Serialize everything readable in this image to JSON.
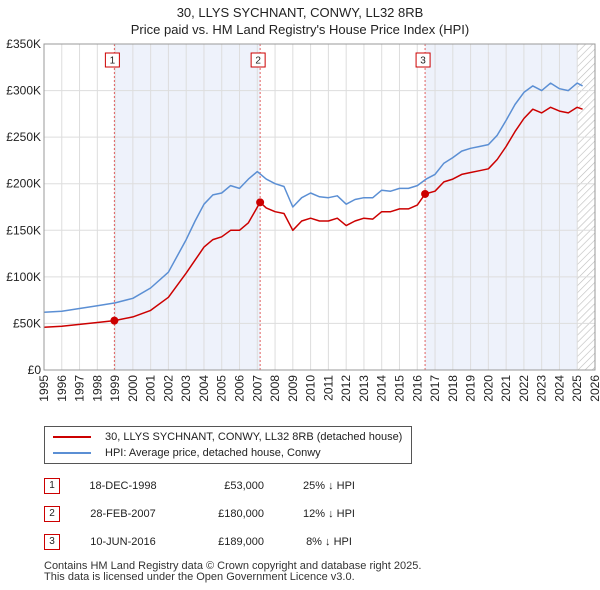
{
  "title_line1": "30, LLYS SYCHNANT, CONWY, LL32 8RB",
  "title_line2": "Price paid vs. HM Land Registry's House Price Index (HPI)",
  "legend": {
    "red_label": "30, LLYS SYCHNANT, CONWY, LL32 8RB (detached house)",
    "blue_label": "HPI: Average price, detached house, Conwy"
  },
  "colors": {
    "red": "#cc0000",
    "blue": "#5b8fd4",
    "shade": "#eef2fb",
    "grid": "#dddddd",
    "hatch": "#bbbbbb"
  },
  "sales": [
    {
      "num": "1",
      "date": "18-DEC-1998",
      "price": "£53,000",
      "delta": "25% ↓ HPI"
    },
    {
      "num": "2",
      "date": "28-FEB-2007",
      "price": "£180,000",
      "delta": "12% ↓ HPI"
    },
    {
      "num": "3",
      "date": "10-JUN-2016",
      "price": "£189,000",
      "delta": "8% ↓ HPI"
    }
  ],
  "footer_line1": "Contains HM Land Registry data © Crown copyright and database right 2025.",
  "footer_line2": "This data is licensed under the Open Government Licence v3.0.",
  "chart_data": {
    "type": "line",
    "title": "30, LLYS SYCHNANT, CONWY, LL32 8RB — Price paid vs. HM Land Registry's House Price Index (HPI)",
    "xlabel": "",
    "ylabel": "",
    "xlim": [
      1995,
      2026
    ],
    "ylim": [
      0,
      350000
    ],
    "y_ticks": [
      0,
      50000,
      100000,
      150000,
      200000,
      250000,
      300000,
      350000
    ],
    "y_tick_labels": [
      "£0",
      "£50K",
      "£100K",
      "£150K",
      "£200K",
      "£250K",
      "£300K",
      "£350K"
    ],
    "x_ticks": [
      1995,
      1996,
      1997,
      1998,
      1999,
      2000,
      2001,
      2002,
      2003,
      2004,
      2005,
      2006,
      2007,
      2008,
      2009,
      2010,
      2011,
      2012,
      2013,
      2014,
      2015,
      2016,
      2017,
      2018,
      2019,
      2020,
      2021,
      2022,
      2023,
      2024,
      2025,
      2026
    ],
    "x_tick_labels": [
      "1995",
      "1996",
      "1997",
      "1998",
      "1999",
      "2000",
      "2001",
      "2002",
      "2003",
      "2004",
      "2005",
      "2006",
      "2007",
      "2008",
      "2009",
      "2010",
      "2011",
      "2012",
      "2013",
      "2014",
      "2015",
      "2016",
      "2017",
      "2018",
      "2019",
      "2020",
      "2021",
      "2022",
      "2023",
      "2024",
      "2025",
      "2026"
    ],
    "grid": true,
    "series": [
      {
        "name": "HPI: Average price, detached house, Conwy",
        "color": "#5b8fd4",
        "x": [
          1995.0,
          1996.0,
          1997.0,
          1998.0,
          1999.0,
          2000.0,
          2001.0,
          2002.0,
          2003.0,
          2003.5,
          2004.0,
          2004.5,
          2005.0,
          2005.5,
          2006.0,
          2006.5,
          2007.0,
          2007.5,
          2008.0,
          2008.5,
          2009.0,
          2009.5,
          2010.0,
          2010.5,
          2011.0,
          2011.5,
          2012.0,
          2012.5,
          2013.0,
          2013.5,
          2014.0,
          2014.5,
          2015.0,
          2015.5,
          2016.0,
          2016.5,
          2017.0,
          2017.5,
          2018.0,
          2018.5,
          2019.0,
          2019.5,
          2020.0,
          2020.5,
          2021.0,
          2021.5,
          2022.0,
          2022.5,
          2023.0,
          2023.5,
          2024.0,
          2024.5,
          2025.0,
          2025.3
        ],
        "y": [
          62000,
          63000,
          66000,
          69000,
          72000,
          77000,
          88000,
          105000,
          140000,
          160000,
          178000,
          188000,
          190000,
          198000,
          195000,
          205000,
          213000,
          205000,
          200000,
          197000,
          175000,
          185000,
          190000,
          186000,
          185000,
          187000,
          178000,
          183000,
          185000,
          185000,
          193000,
          192000,
          195000,
          195000,
          198000,
          205000,
          210000,
          222000,
          228000,
          235000,
          238000,
          240000,
          242000,
          252000,
          268000,
          285000,
          298000,
          305000,
          300000,
          308000,
          302000,
          300000,
          308000,
          305000
        ]
      },
      {
        "name": "30, LLYS SYCHNANT, CONWY, LL32 8RB (detached house)",
        "color": "#cc0000",
        "x": [
          1995.0,
          1996.0,
          1997.0,
          1998.0,
          1998.96,
          2000.0,
          2001.0,
          2002.0,
          2003.0,
          2003.5,
          2004.0,
          2004.5,
          2005.0,
          2005.5,
          2006.0,
          2006.5,
          2007.16,
          2007.5,
          2008.0,
          2008.5,
          2009.0,
          2009.5,
          2010.0,
          2010.5,
          2011.0,
          2011.5,
          2012.0,
          2012.5,
          2013.0,
          2013.5,
          2014.0,
          2014.5,
          2015.0,
          2015.5,
          2016.0,
          2016.44,
          2017.0,
          2017.5,
          2018.0,
          2018.5,
          2019.0,
          2019.5,
          2020.0,
          2020.5,
          2021.0,
          2021.5,
          2022.0,
          2022.5,
          2023.0,
          2023.5,
          2024.0,
          2024.5,
          2025.0,
          2025.3
        ],
        "y": [
          46000,
          47000,
          49000,
          51000,
          53000,
          57000,
          64000,
          78000,
          104000,
          118000,
          132000,
          140000,
          143000,
          150000,
          150000,
          158000,
          180000,
          174000,
          170000,
          168000,
          150000,
          160000,
          163000,
          160000,
          160000,
          163000,
          155000,
          160000,
          163000,
          162000,
          170000,
          170000,
          173000,
          173000,
          177000,
          189000,
          192000,
          202000,
          205000,
          210000,
          212000,
          214000,
          216000,
          226000,
          240000,
          256000,
          270000,
          280000,
          276000,
          282000,
          278000,
          276000,
          282000,
          280000
        ]
      }
    ],
    "annotations": [
      {
        "label": "1",
        "x": 1998.96,
        "y": 53000
      },
      {
        "label": "2",
        "x": 2007.16,
        "y": 180000
      },
      {
        "label": "3",
        "x": 2016.44,
        "y": 189000
      }
    ]
  }
}
